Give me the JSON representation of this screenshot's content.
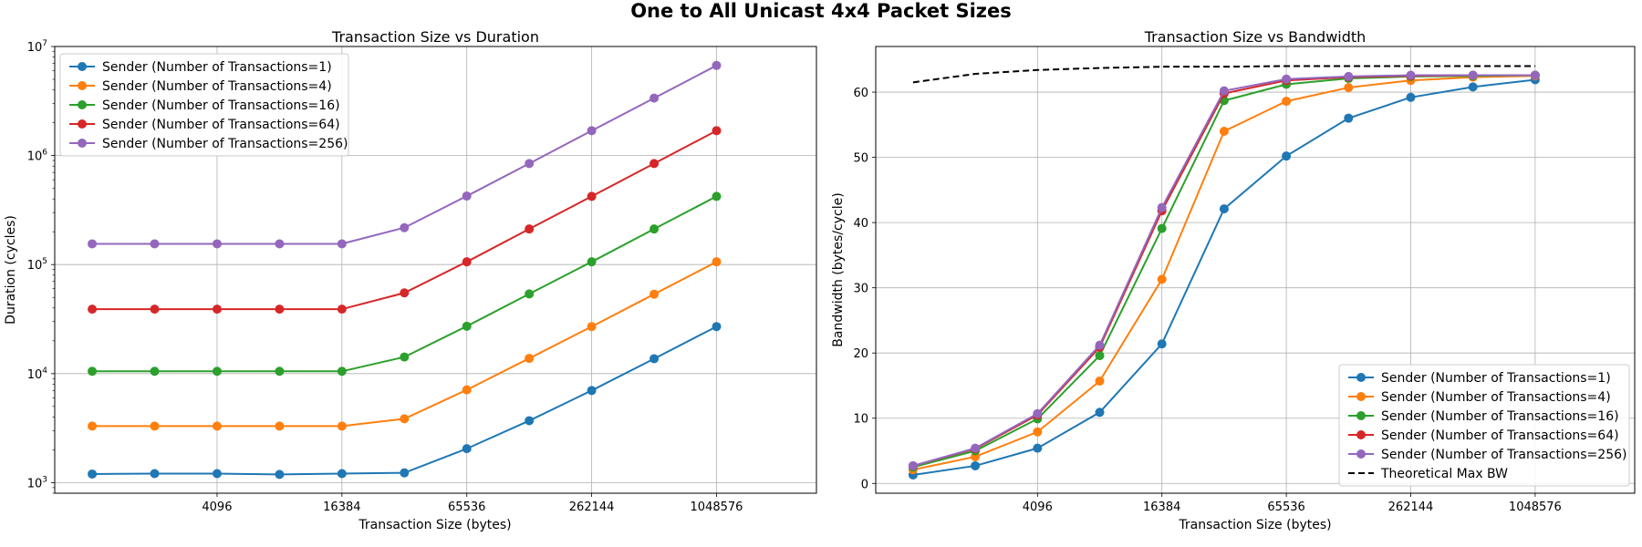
{
  "suptitle": "One to All Unicast 4x4 Packet Sizes",
  "series_styles": [
    {
      "name": "Sender (Number of Transactions=1)",
      "color": "#1f77b4"
    },
    {
      "name": "Sender (Number of Transactions=4)",
      "color": "#ff7f0e"
    },
    {
      "name": "Sender (Number of Transactions=16)",
      "color": "#2ca02c"
    },
    {
      "name": "Sender (Number of Transactions=64)",
      "color": "#d62728"
    },
    {
      "name": "Sender (Number of Transactions=256)",
      "color": "#9467bd"
    }
  ],
  "chart_data": [
    {
      "type": "line",
      "title": "Transaction Size vs Duration",
      "xlabel": "Transaction Size (bytes)",
      "ylabel": "Duration (cycles)",
      "xscale": "log2",
      "yscale": "log10",
      "grid": true,
      "legend": "upper left",
      "x": [
        1024,
        2048,
        4096,
        8192,
        16384,
        32768,
        65536,
        131072,
        262144,
        524288,
        1048576,
        2097152
      ],
      "x_ticks": [
        4096,
        16384,
        65536,
        262144,
        1048576
      ],
      "x_tick_labels": [
        "4096",
        "16384",
        "65536",
        "262144",
        "1048576"
      ],
      "ylim": [
        800,
        10000000
      ],
      "y_ticks": [
        1000,
        10000,
        100000,
        1000000,
        10000000
      ],
      "y_tick_labels": [
        {
          "base": "10",
          "exp": "3"
        },
        {
          "base": "10",
          "exp": "4"
        },
        {
          "base": "10",
          "exp": "5"
        },
        {
          "base": "10",
          "exp": "6"
        },
        {
          "base": "10",
          "exp": "7"
        }
      ],
      "series": [
        {
          "name": "Sender (Number of Transactions=1)",
          "values": [
            1200,
            1210,
            1210,
            1190,
            1210,
            1230,
            2050,
            3700,
            7000,
            13700,
            27000,
            null
          ]
        },
        {
          "name": "Sender (Number of Transactions=4)",
          "values": [
            3300,
            3300,
            3300,
            3300,
            3300,
            3850,
            7100,
            13800,
            27000,
            53500,
            106000,
            null
          ]
        },
        {
          "name": "Sender (Number of Transactions=16)",
          "values": [
            10500,
            10500,
            10500,
            10500,
            10500,
            14200,
            27200,
            53800,
            106000,
            212000,
            422000,
            null
          ]
        },
        {
          "name": "Sender (Number of Transactions=64)",
          "values": [
            39000,
            39000,
            39000,
            39000,
            39000,
            55000,
            106000,
            212000,
            422000,
            845000,
            1690000,
            null
          ]
        },
        {
          "name": "Sender (Number of Transactions=256)",
          "values": [
            155000,
            155000,
            155000,
            155000,
            155000,
            218000,
            425000,
            845000,
            1690000,
            3360000,
            6700000,
            null
          ]
        }
      ]
    },
    {
      "type": "line",
      "title": "Transaction Size vs Bandwidth",
      "xlabel": "Transaction Size (bytes)",
      "ylabel": "Bandwidth (bytes/cycle)",
      "xscale": "log2",
      "yscale": "linear",
      "grid": true,
      "legend": "lower right",
      "x": [
        1024,
        2048,
        4096,
        8192,
        16384,
        32768,
        65536,
        131072,
        262144,
        524288,
        1048576,
        2097152
      ],
      "x_ticks": [
        4096,
        16384,
        65536,
        262144,
        1048576
      ],
      "x_tick_labels": [
        "4096",
        "16384",
        "65536",
        "262144",
        "1048576"
      ],
      "ylim": [
        -1.5,
        67
      ],
      "y_ticks": [
        0,
        10,
        20,
        30,
        40,
        50,
        60
      ],
      "y_tick_labels": [
        "0",
        "10",
        "20",
        "30",
        "40",
        "50",
        "60"
      ],
      "series": [
        {
          "name": "Sender (Number of Transactions=1)",
          "values": [
            1.3,
            2.7,
            5.4,
            10.9,
            21.4,
            42.1,
            50.2,
            56.0,
            59.2,
            60.8,
            61.9,
            null
          ]
        },
        {
          "name": "Sender (Number of Transactions=4)",
          "values": [
            2.1,
            4.1,
            7.9,
            15.7,
            31.3,
            54.0,
            58.6,
            60.7,
            61.8,
            62.3,
            62.5,
            null
          ]
        },
        {
          "name": "Sender (Number of Transactions=16)",
          "values": [
            2.5,
            5.0,
            9.9,
            19.6,
            39.1,
            58.7,
            61.2,
            62.1,
            62.4,
            62.5,
            62.6,
            null
          ]
        },
        {
          "name": "Sender (Number of Transactions=64)",
          "values": [
            2.7,
            5.3,
            10.5,
            20.9,
            41.8,
            59.8,
            61.8,
            62.3,
            62.5,
            62.6,
            62.6,
            null
          ]
        },
        {
          "name": "Sender (Number of Transactions=256)",
          "values": [
            2.7,
            5.4,
            10.7,
            21.2,
            42.3,
            60.2,
            62.0,
            62.4,
            62.6,
            62.6,
            62.6,
            null
          ]
        },
        {
          "name": "Theoretical Max BW",
          "dashed": true,
          "color": "#000000",
          "values": [
            61.5,
            62.8,
            63.4,
            63.7,
            63.9,
            63.9,
            64.0,
            64.0,
            64.0,
            64.0,
            64.0,
            null
          ]
        }
      ]
    }
  ]
}
